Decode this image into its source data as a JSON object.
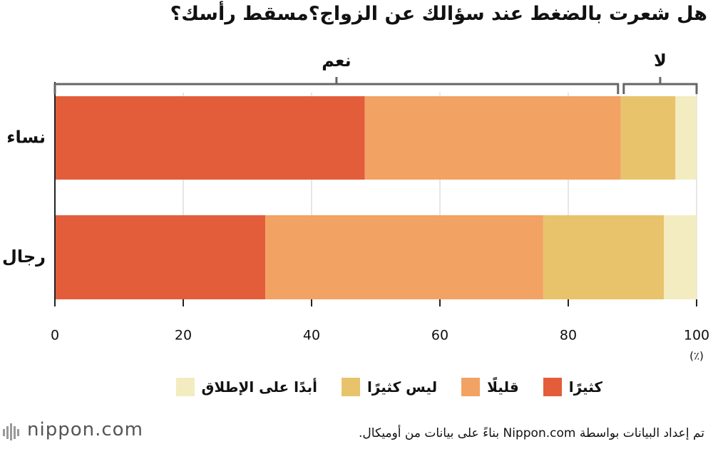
{
  "chart_data": {
    "type": "stacked_barh",
    "title": "هل شعرت بالضغط عند سؤالك عن الزواج؟مسقط رأسك؟",
    "categories": [
      "نساء",
      "رجال"
    ],
    "series": [
      {
        "name": "كثيرًا",
        "color": "#e35d3a",
        "values": [
          48.3,
          32.8
        ]
      },
      {
        "name": "قليلًا",
        "color": "#f2a263",
        "values": [
          39.9,
          43.3
        ]
      },
      {
        "name": "ليس كثيرًا",
        "color": "#e8c36b",
        "values": [
          8.5,
          18.8
        ]
      },
      {
        "name": "أبدًا على الإطلاق",
        "color": "#f3ecc0",
        "values": [
          3.3,
          5.1
        ]
      }
    ],
    "annotations": [
      "نعم",
      "لا"
    ],
    "xlim": [
      0,
      100
    ],
    "xticks": [
      0,
      20,
      40,
      60,
      80,
      100
    ],
    "grid": true,
    "x_unit": "(٪)",
    "source": "تم إعداد البيانات بواسطة Nippon.com بناءً على بيانات من أوميكال.",
    "logo": "nippon.com"
  }
}
